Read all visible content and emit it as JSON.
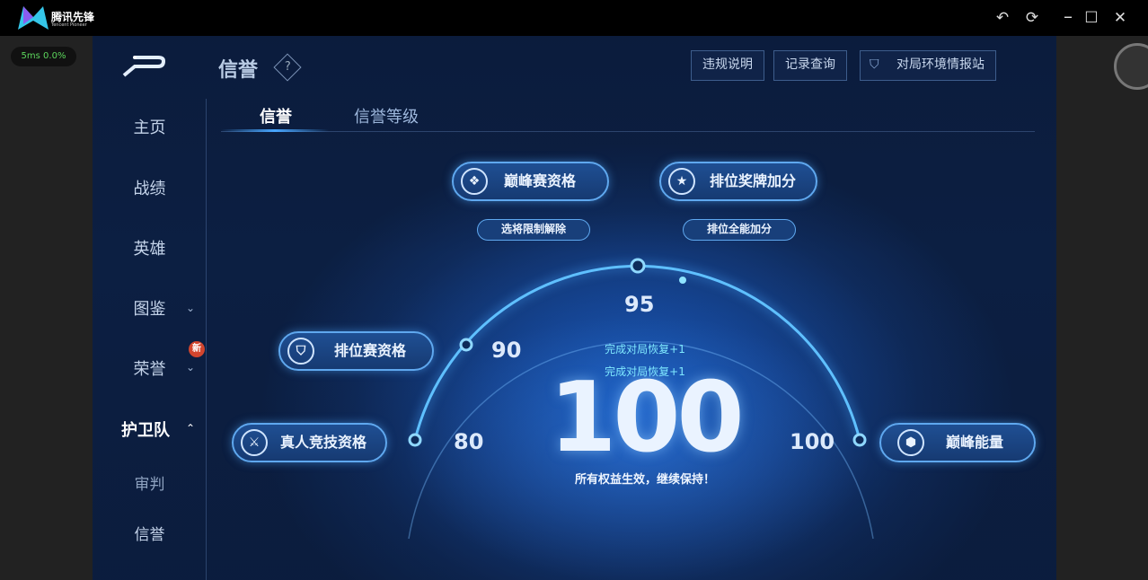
{
  "app": {
    "title": "腾讯先锋",
    "subtitle": "Tencent Pioneer",
    "ping": "5ms  0.0%"
  },
  "window": {
    "undo": "↶",
    "refresh": "⟳",
    "maximize": "☐",
    "close": "✕"
  },
  "header": {
    "title": "信誉",
    "help": "?",
    "buttons": [
      "违规说明",
      "记录查询",
      "对局环境情报站"
    ]
  },
  "sidebar": {
    "items": [
      {
        "label": "主页"
      },
      {
        "label": "战绩"
      },
      {
        "label": "英雄"
      },
      {
        "label": "图鉴",
        "chevron": "down"
      },
      {
        "label": "荣誉",
        "chevron": "down",
        "badge": "新"
      },
      {
        "label": "护卫队",
        "chevron": "up",
        "active": true
      },
      {
        "label": "审判"
      },
      {
        "label": "信誉",
        "selected": true
      }
    ]
  },
  "tabs": [
    {
      "label": "信誉",
      "active": true
    },
    {
      "label": "信誉等级"
    }
  ],
  "privileges": {
    "peak": {
      "label": "巅峰赛资格",
      "sub": "选将限制解除"
    },
    "ranked_bonus": {
      "label": "排位奖牌加分",
      "sub": "排位全能加分"
    },
    "ranked": {
      "label": "排位赛资格"
    },
    "pvp": {
      "label": "真人竞技资格"
    },
    "energy": {
      "label": "巅峰能量"
    }
  },
  "thresholds": {
    "t80": "80",
    "t90": "90",
    "t95": "95",
    "t100": "100"
  },
  "score": {
    "value": "100",
    "recover1": "完成对局恢复+1",
    "recover2": "完成对局恢复+1",
    "status": "所有权益生效，继续保持！"
  },
  "colors": {
    "accent": "#48a6ff",
    "badge": "#d2452e"
  }
}
